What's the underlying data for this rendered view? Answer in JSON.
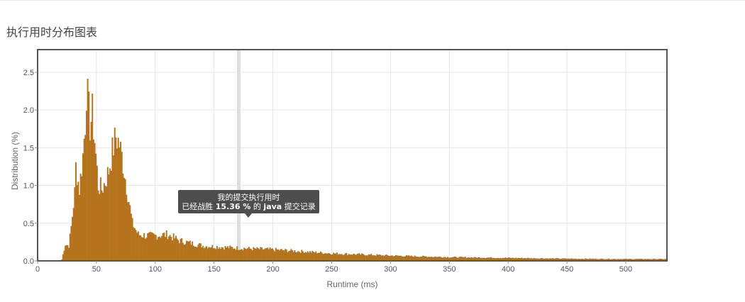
{
  "section": {
    "title": "执行用时分布图表"
  },
  "tooltip": {
    "line1": "我的提交执行用时",
    "line2_prefix": "已经战胜",
    "percent": "15.36 %",
    "line2_mid": "的",
    "language": "java",
    "line2_suffix": "提交记录"
  },
  "colors": {
    "bar": "#b5731c",
    "highlight": "#dddddd",
    "frame": "#555555",
    "grid": "#e5e5e5",
    "tooltip_bg": "#4d4d4d"
  },
  "chart_data": {
    "type": "bar",
    "xlabel": "Runtime (ms)",
    "ylabel": "Distribution (%)",
    "xlim": [
      0,
      535
    ],
    "ylim": [
      0,
      2.8
    ],
    "x_ticks": [
      0,
      50,
      100,
      150,
      200,
      250,
      300,
      350,
      400,
      450,
      500
    ],
    "y_ticks": [
      0.0,
      0.5,
      1.0,
      1.5,
      2.0,
      2.5
    ],
    "y_tick_labels": [
      "0.0",
      "0.5",
      "1.0",
      "1.5",
      "2.0",
      "2.5"
    ],
    "bin_width_ms": 1,
    "highlight_runtime_ms": 171,
    "grid": true,
    "key_points": [
      {
        "x": 20,
        "y": 0.02
      },
      {
        "x": 23,
        "y": 0.22
      },
      {
        "x": 26,
        "y": 0.2
      },
      {
        "x": 28,
        "y": 0.45
      },
      {
        "x": 31,
        "y": 0.9
      },
      {
        "x": 32,
        "y": 1.25
      },
      {
        "x": 35,
        "y": 0.95
      },
      {
        "x": 38,
        "y": 1.4
      },
      {
        "x": 40,
        "y": 1.85
      },
      {
        "x": 41,
        "y": 2.3
      },
      {
        "x": 44,
        "y": 1.8
      },
      {
        "x": 46,
        "y": 1.95
      },
      {
        "x": 48,
        "y": 1.6
      },
      {
        "x": 51,
        "y": 1.0
      },
      {
        "x": 54,
        "y": 0.95
      },
      {
        "x": 57,
        "y": 1.05
      },
      {
        "x": 60,
        "y": 1.2
      },
      {
        "x": 63,
        "y": 1.45
      },
      {
        "x": 66,
        "y": 1.65
      },
      {
        "x": 69,
        "y": 1.55
      },
      {
        "x": 72,
        "y": 1.3
      },
      {
        "x": 76,
        "y": 0.9
      },
      {
        "x": 80,
        "y": 0.5
      },
      {
        "x": 85,
        "y": 0.35
      },
      {
        "x": 95,
        "y": 0.33
      },
      {
        "x": 110,
        "y": 0.35
      },
      {
        "x": 120,
        "y": 0.27
      },
      {
        "x": 140,
        "y": 0.2
      },
      {
        "x": 170,
        "y": 0.17
      },
      {
        "x": 200,
        "y": 0.15
      },
      {
        "x": 250,
        "y": 0.1
      },
      {
        "x": 300,
        "y": 0.07
      },
      {
        "x": 350,
        "y": 0.05
      },
      {
        "x": 400,
        "y": 0.04
      },
      {
        "x": 450,
        "y": 0.03
      },
      {
        "x": 500,
        "y": 0.025
      },
      {
        "x": 534,
        "y": 0.025
      }
    ]
  }
}
